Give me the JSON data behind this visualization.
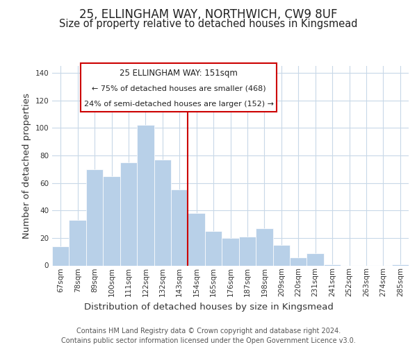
{
  "title": "25, ELLINGHAM WAY, NORTHWICH, CW9 8UF",
  "subtitle": "Size of property relative to detached houses in Kingsmead",
  "xlabel": "Distribution of detached houses by size in Kingsmead",
  "ylabel": "Number of detached properties",
  "bar_labels": [
    "67sqm",
    "78sqm",
    "89sqm",
    "100sqm",
    "111sqm",
    "122sqm",
    "132sqm",
    "143sqm",
    "154sqm",
    "165sqm",
    "176sqm",
    "187sqm",
    "198sqm",
    "209sqm",
    "220sqm",
    "231sqm",
    "241sqm",
    "252sqm",
    "263sqm",
    "274sqm",
    "285sqm"
  ],
  "bar_values": [
    14,
    33,
    70,
    65,
    75,
    102,
    77,
    55,
    38,
    25,
    20,
    21,
    27,
    15,
    6,
    9,
    1,
    0,
    0,
    0,
    1
  ],
  "bar_color": "#b8d0e8",
  "highlight_line_color": "#cc0000",
  "ylim": [
    0,
    145
  ],
  "yticks": [
    0,
    20,
    40,
    60,
    80,
    100,
    120,
    140
  ],
  "annotation_title": "25 ELLINGHAM WAY: 151sqm",
  "annotation_line1": "← 75% of detached houses are smaller (468)",
  "annotation_line2": "24% of semi-detached houses are larger (152) →",
  "annotation_box_color": "#ffffff",
  "annotation_box_edge": "#cc0000",
  "footer_line1": "Contains HM Land Registry data © Crown copyright and database right 2024.",
  "footer_line2": "Contains public sector information licensed under the Open Government Licence v3.0.",
  "background_color": "#ffffff",
  "grid_color": "#c8d8e8",
  "title_fontsize": 12,
  "subtitle_fontsize": 10.5,
  "axis_label_fontsize": 9.5,
  "tick_fontsize": 7.5,
  "footer_fontsize": 7
}
